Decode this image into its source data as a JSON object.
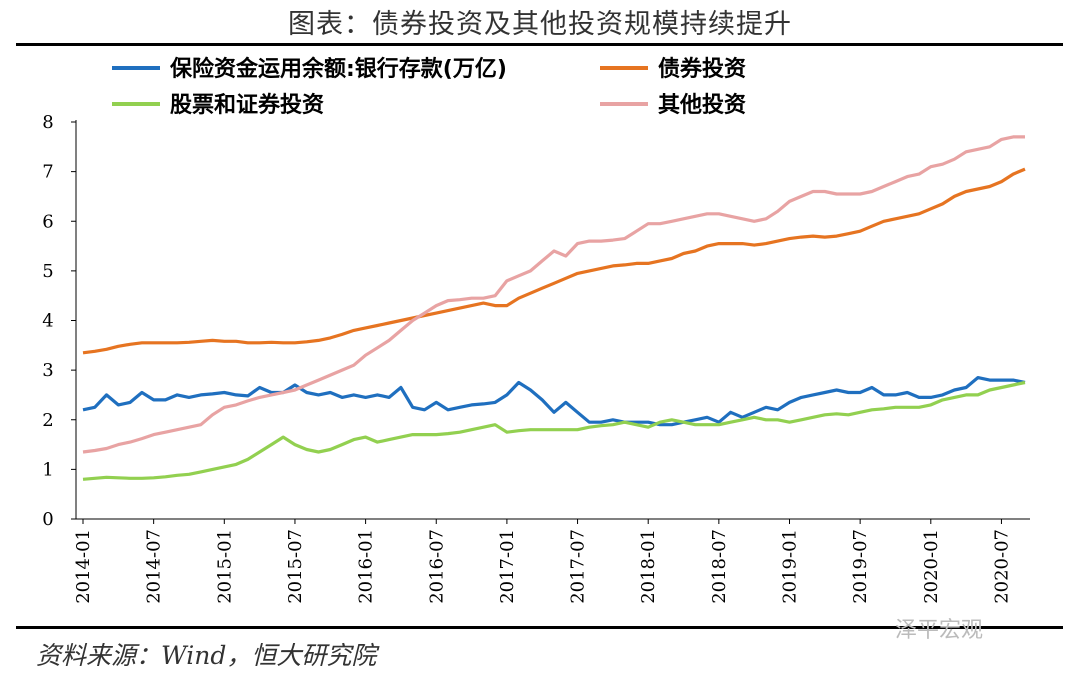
{
  "title": "图表：债券投资及其他投资规模持续提升",
  "source": "资料来源：Wind，恒大研究院",
  "watermark": "泽平宏观",
  "chart_data": {
    "type": "line",
    "ylim": [
      0,
      8
    ],
    "yticks": [
      0,
      1,
      2,
      3,
      4,
      5,
      6,
      7,
      8
    ],
    "xticks": [
      "2014-01",
      "2014-07",
      "2015-01",
      "2015-07",
      "2016-01",
      "2016-07",
      "2017-01",
      "2017-07",
      "2018-01",
      "2018-07",
      "2019-01",
      "2019-07",
      "2020-01",
      "2020-07"
    ],
    "legend": "top, two columns",
    "series": [
      {
        "name": "保险资金运用余额:银行存款(万亿)",
        "color": "#1f6fbf",
        "values": [
          2.2,
          2.25,
          2.5,
          2.3,
          2.35,
          2.55,
          2.4,
          2.4,
          2.5,
          2.45,
          2.5,
          2.52,
          2.55,
          2.5,
          2.48,
          2.65,
          2.55,
          2.55,
          2.7,
          2.55,
          2.5,
          2.55,
          2.45,
          2.5,
          2.45,
          2.5,
          2.45,
          2.65,
          2.25,
          2.2,
          2.35,
          2.2,
          2.25,
          2.3,
          2.32,
          2.35,
          2.5,
          2.75,
          2.6,
          2.4,
          2.15,
          2.35,
          2.15,
          1.95,
          1.95,
          2.0,
          1.95,
          1.95,
          1.95,
          1.9,
          1.9,
          1.95,
          2.0,
          2.05,
          1.95,
          2.15,
          2.05,
          2.15,
          2.25,
          2.2,
          2.35,
          2.45,
          2.5,
          2.55,
          2.6,
          2.55,
          2.55,
          2.65,
          2.5,
          2.5,
          2.55,
          2.45,
          2.45,
          2.5,
          2.6,
          2.65,
          2.85,
          2.8,
          2.8,
          2.8,
          2.75
        ]
      },
      {
        "name": "债券投资",
        "color": "#e67421",
        "values": [
          3.35,
          3.38,
          3.42,
          3.48,
          3.52,
          3.55,
          3.55,
          3.55,
          3.55,
          3.56,
          3.58,
          3.6,
          3.58,
          3.58,
          3.55,
          3.55,
          3.56,
          3.55,
          3.55,
          3.57,
          3.6,
          3.65,
          3.72,
          3.8,
          3.85,
          3.9,
          3.95,
          4.0,
          4.05,
          4.1,
          4.15,
          4.2,
          4.25,
          4.3,
          4.35,
          4.3,
          4.3,
          4.45,
          4.55,
          4.65,
          4.75,
          4.85,
          4.95,
          5.0,
          5.05,
          5.1,
          5.12,
          5.15,
          5.15,
          5.2,
          5.25,
          5.35,
          5.4,
          5.5,
          5.55,
          5.55,
          5.55,
          5.52,
          5.55,
          5.6,
          5.65,
          5.68,
          5.7,
          5.68,
          5.7,
          5.75,
          5.8,
          5.9,
          6.0,
          6.05,
          6.1,
          6.15,
          6.25,
          6.35,
          6.5,
          6.6,
          6.65,
          6.7,
          6.8,
          6.95,
          7.05
        ]
      },
      {
        "name": "股票和证券投资",
        "color": "#92d050",
        "values": [
          0.8,
          0.82,
          0.84,
          0.83,
          0.82,
          0.82,
          0.83,
          0.85,
          0.88,
          0.9,
          0.95,
          1.0,
          1.05,
          1.1,
          1.2,
          1.35,
          1.5,
          1.65,
          1.5,
          1.4,
          1.35,
          1.4,
          1.5,
          1.6,
          1.65,
          1.55,
          1.6,
          1.65,
          1.7,
          1.7,
          1.7,
          1.72,
          1.75,
          1.8,
          1.85,
          1.9,
          1.75,
          1.78,
          1.8,
          1.8,
          1.8,
          1.8,
          1.8,
          1.85,
          1.88,
          1.9,
          1.95,
          1.9,
          1.85,
          1.95,
          2.0,
          1.95,
          1.9,
          1.9,
          1.9,
          1.95,
          2.0,
          2.05,
          2.0,
          2.0,
          1.95,
          2.0,
          2.05,
          2.1,
          2.12,
          2.1,
          2.15,
          2.2,
          2.22,
          2.25,
          2.25,
          2.25,
          2.3,
          2.4,
          2.45,
          2.5,
          2.5,
          2.6,
          2.65,
          2.7,
          2.75
        ]
      },
      {
        "name": "其他投资",
        "color": "#e8a3a3",
        "values": [
          1.35,
          1.38,
          1.42,
          1.5,
          1.55,
          1.62,
          1.7,
          1.75,
          1.8,
          1.85,
          1.9,
          2.1,
          2.25,
          2.3,
          2.38,
          2.45,
          2.5,
          2.55,
          2.6,
          2.7,
          2.8,
          2.9,
          3.0,
          3.1,
          3.3,
          3.45,
          3.6,
          3.8,
          4.0,
          4.15,
          4.3,
          4.4,
          4.42,
          4.45,
          4.45,
          4.5,
          4.8,
          4.9,
          5.0,
          5.2,
          5.4,
          5.3,
          5.55,
          5.6,
          5.6,
          5.62,
          5.65,
          5.8,
          5.95,
          5.95,
          6.0,
          6.05,
          6.1,
          6.15,
          6.15,
          6.1,
          6.05,
          6.0,
          6.05,
          6.2,
          6.4,
          6.5,
          6.6,
          6.6,
          6.55,
          6.55,
          6.55,
          6.6,
          6.7,
          6.8,
          6.9,
          6.95,
          7.1,
          7.15,
          7.25,
          7.4,
          7.45,
          7.5,
          7.65,
          7.7,
          7.7
        ]
      }
    ]
  }
}
